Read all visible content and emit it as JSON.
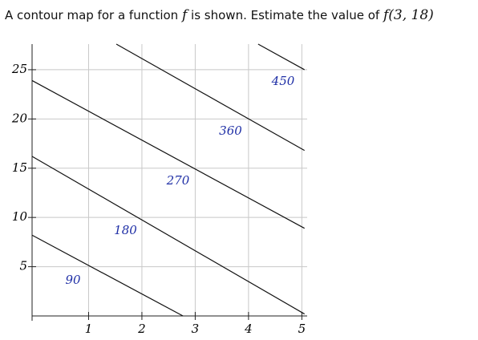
{
  "question": {
    "text_1": "A contour map for a function",
    "var": "f",
    "text_2": "is shown. Estimate the value of",
    "expr": "f(3, 18)"
  },
  "chart_data": {
    "type": "contour",
    "xlim": [
      -0.06,
      5.1
    ],
    "ylim": [
      0,
      27.6
    ],
    "xticks": [
      1,
      2,
      3,
      4,
      5
    ],
    "yticks": [
      5,
      10,
      15,
      20,
      25
    ],
    "grid": true,
    "color": "#111111",
    "label_color": "#1f2fa6",
    "series": [
      {
        "level": 90,
        "x": [
          -0.06,
          2.77
        ],
        "y": [
          8.2,
          0
        ]
      },
      {
        "level": 180,
        "x": [
          -0.06,
          5.05
        ],
        "y": [
          16.2,
          0.2
        ]
      },
      {
        "level": 270,
        "x": [
          -0.06,
          5.05
        ],
        "y": [
          23.9,
          8.9
        ]
      },
      {
        "level": 360,
        "x": [
          1.52,
          5.05
        ],
        "y": [
          27.6,
          16.8
        ]
      },
      {
        "level": 450,
        "x": [
          4.18,
          5.05
        ],
        "y": [
          27.6,
          25
        ]
      }
    ]
  }
}
